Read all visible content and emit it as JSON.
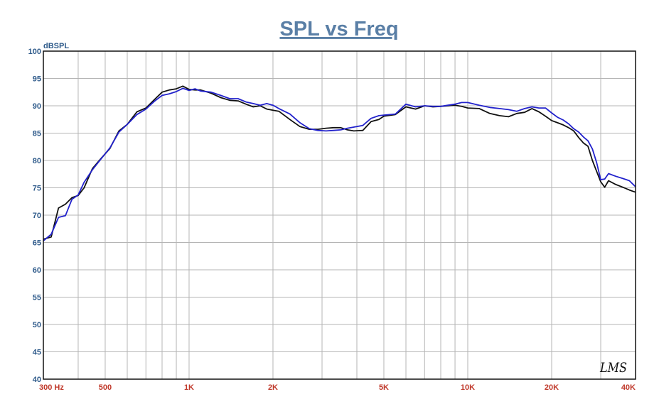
{
  "logo_text": "LMS",
  "colors": {
    "title": "#5a7fa6",
    "y_ticks": "#2e5a8a",
    "x_ticks": "#c0392b",
    "grid": "#b5b5b5",
    "frame": "#111111"
  },
  "chart_data": {
    "type": "line",
    "title": "SPL vs Freq",
    "ylabel": "dBSPL",
    "x_scale": "log",
    "xlim": [
      300,
      40000
    ],
    "ylim": [
      40,
      100
    ],
    "grid": true,
    "yticks": [
      40,
      45,
      50,
      55,
      60,
      65,
      70,
      75,
      80,
      85,
      90,
      95,
      100
    ],
    "xtick_values": [
      300,
      500,
      1000,
      2000,
      5000,
      10000,
      20000,
      40000
    ],
    "xtick_labels": [
      "300  Hz",
      "500",
      "1K",
      "2K",
      "5K",
      "10K",
      "20K",
      "40K"
    ],
    "series": [
      {
        "color": "#111111",
        "x": [
          300,
          320,
          340,
          360,
          380,
          400,
          420,
          450,
          480,
          520,
          560,
          600,
          650,
          700,
          750,
          800,
          850,
          900,
          950,
          1000,
          1050,
          1100,
          1200,
          1300,
          1400,
          1500,
          1600,
          1700,
          1800,
          1900,
          2000,
          2100,
          2300,
          2500,
          2700,
          2900,
          3100,
          3300,
          3500,
          3700,
          3900,
          4200,
          4500,
          4800,
          5000,
          5500,
          6000,
          6500,
          7000,
          7500,
          8000,
          8500,
          9000,
          9500,
          10000,
          11000,
          12000,
          13000,
          14000,
          15000,
          16000,
          17000,
          18000,
          19000,
          20000,
          21000,
          22000,
          23000,
          24000,
          25000,
          26000,
          27000,
          28000,
          29000,
          30000,
          31000,
          32000,
          34000,
          36000,
          38000,
          40000
        ],
        "y": [
          65.6,
          66,
          71.3,
          72,
          73.2,
          73.6,
          75,
          78.5,
          80.2,
          82.2,
          85.4,
          86.6,
          88.9,
          89.6,
          91.1,
          92.5,
          92.9,
          93.1,
          93.6,
          93,
          92.9,
          92.9,
          92.3,
          91.5,
          91,
          90.9,
          90.3,
          89.8,
          90,
          89.4,
          89.2,
          89,
          87.5,
          86.2,
          85.7,
          85.7,
          85.9,
          86,
          86,
          85.6,
          85.4,
          85.5,
          87.1,
          87.5,
          88.1,
          88.4,
          89.8,
          89.4,
          90,
          89.8,
          89.9,
          90,
          90.1,
          89.9,
          89.6,
          89.5,
          88.6,
          88.2,
          88,
          88.6,
          88.8,
          89.5,
          88.9,
          88.1,
          87.3,
          86.9,
          86.5,
          86,
          85.4,
          84.2,
          83.2,
          82.6,
          80,
          78,
          76.1,
          75.1,
          76.3,
          75.6,
          75.1,
          74.6,
          74.2
        ]
      },
      {
        "color": "#2222cc",
        "x": [
          300,
          320,
          340,
          360,
          380,
          400,
          420,
          450,
          480,
          520,
          560,
          600,
          650,
          700,
          750,
          800,
          850,
          900,
          950,
          1000,
          1050,
          1100,
          1200,
          1300,
          1400,
          1500,
          1600,
          1700,
          1800,
          1900,
          2000,
          2100,
          2300,
          2500,
          2700,
          2900,
          3100,
          3300,
          3500,
          3700,
          3900,
          4200,
          4500,
          4800,
          5000,
          5500,
          6000,
          6500,
          7000,
          7500,
          8000,
          8500,
          9000,
          9500,
          10000,
          11000,
          12000,
          13000,
          14000,
          15000,
          16000,
          17000,
          18000,
          19000,
          20000,
          21000,
          22000,
          23000,
          24000,
          25000,
          26000,
          27000,
          28000,
          29000,
          30000,
          31000,
          32000,
          34000,
          36000,
          38000,
          40000
        ],
        "y": [
          65.3,
          66.5,
          69.6,
          69.9,
          72.9,
          73.7,
          76,
          78.3,
          80.1,
          82.3,
          85.2,
          86.6,
          88.4,
          89.4,
          90.8,
          91.9,
          92.2,
          92.6,
          93.2,
          92.8,
          93.1,
          92.7,
          92.5,
          91.9,
          91.3,
          91.3,
          90.7,
          90.4,
          90.1,
          90.4,
          90.1,
          89.5,
          88.5,
          86.9,
          85.8,
          85.5,
          85.4,
          85.5,
          85.6,
          85.9,
          86.1,
          86.4,
          87.7,
          88.2,
          88.3,
          88.5,
          90.3,
          89.8,
          90,
          89.9,
          89.9,
          90.1,
          90.3,
          90.6,
          90.6,
          90.1,
          89.7,
          89.5,
          89.3,
          89,
          89.5,
          89.8,
          89.6,
          89.6,
          88.7,
          87.9,
          87.4,
          86.7,
          85.8,
          85.2,
          84.3,
          83.6,
          82.1,
          79.6,
          76.5,
          76.6,
          77.6,
          77.1,
          76.7,
          76.3,
          75.2
        ]
      }
    ]
  }
}
